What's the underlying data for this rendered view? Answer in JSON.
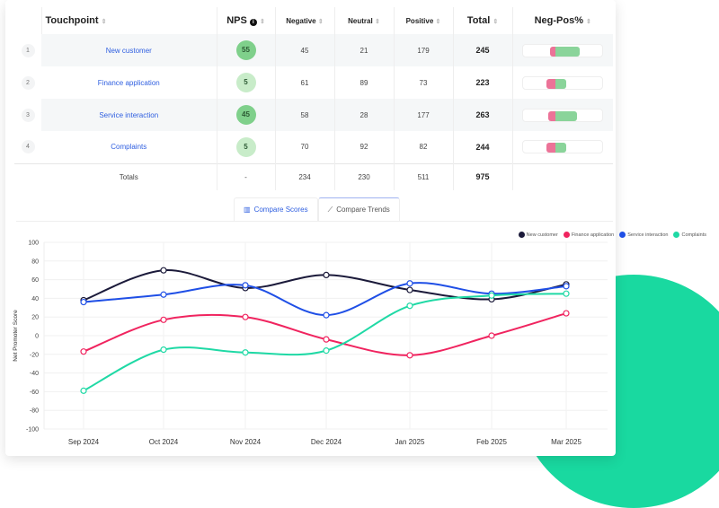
{
  "table": {
    "headers": [
      "Touchpoint",
      "NPS",
      "Negative",
      "Neutral",
      "Positive",
      "Total",
      "Neg-Pos%"
    ],
    "rows": [
      {
        "index": "1",
        "touchpoint": "New customer",
        "nps": "55",
        "negative": "45",
        "neutral": "21",
        "positive": "179",
        "total": "245"
      },
      {
        "index": "2",
        "touchpoint": "Finance application",
        "nps": "5",
        "negative": "61",
        "neutral": "89",
        "positive": "73",
        "total": "223"
      },
      {
        "index": "3",
        "touchpoint": "Service interaction",
        "nps": "45",
        "negative": "58",
        "neutral": "28",
        "positive": "177",
        "total": "263"
      },
      {
        "index": "4",
        "touchpoint": "Complaints",
        "nps": "5",
        "negative": "70",
        "neutral": "92",
        "positive": "82",
        "total": "244"
      }
    ],
    "totals": {
      "label": "Totals",
      "nps": "-",
      "negative": "234",
      "neutral": "230",
      "positive": "511",
      "total": "975"
    }
  },
  "tabs": {
    "scores": "Compare Scores",
    "trends": "Compare Trends"
  },
  "chart_data": {
    "type": "line",
    "ylabel": "Net Promoter Score",
    "ylim": [
      -100,
      100
    ],
    "yticks": [
      100,
      80,
      60,
      40,
      20,
      0,
      -20,
      -40,
      -60,
      -80,
      -100
    ],
    "categories": [
      "Sep 2024",
      "Oct 2024",
      "Nov 2024",
      "Dec 2024",
      "Jan 2025",
      "Feb 2025",
      "Mar 2025"
    ],
    "legend_position": "top-right",
    "grid": true,
    "series": [
      {
        "name": "New customer",
        "color": "#1b1a3a",
        "values": [
          38,
          70,
          51,
          65,
          49,
          39,
          55
        ]
      },
      {
        "name": "Finance application",
        "color": "#f0245f",
        "values": [
          -17,
          17,
          20,
          -4,
          -21,
          0,
          24
        ]
      },
      {
        "name": "Service interaction",
        "color": "#1f4fe6",
        "values": [
          36,
          44,
          54,
          22,
          56,
          45,
          53
        ]
      },
      {
        "name": "Complaints",
        "color": "#1fd9a5",
        "values": [
          -59,
          -15,
          -18,
          -16,
          32,
          43,
          45
        ]
      }
    ]
  }
}
